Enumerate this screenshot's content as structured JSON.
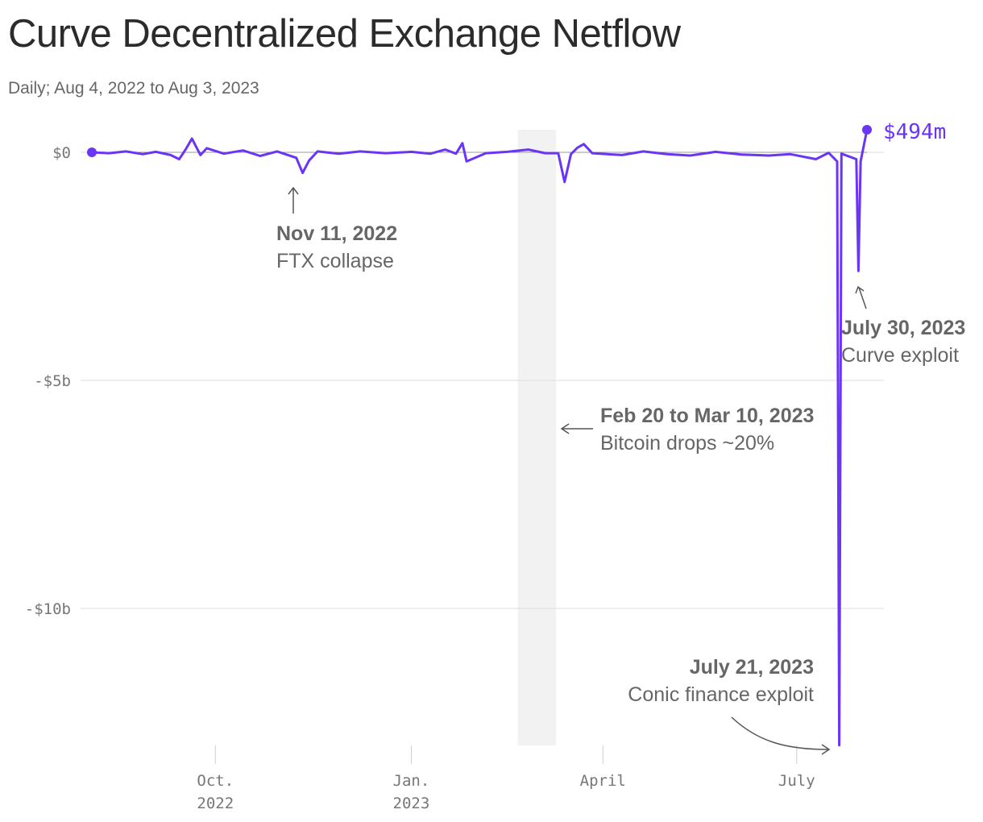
{
  "title": "Curve Decentralized Exchange Netflow",
  "subtitle": "Daily; Aug 4, 2022 to Aug 3, 2023",
  "chart_data": {
    "type": "line",
    "x_range": [
      "2022-08-04",
      "2023-08-03"
    ],
    "ylim": [
      -13000,
      500
    ],
    "y_unit": "millions USD",
    "y_ticks": [
      {
        "value": 0,
        "label": "$0"
      },
      {
        "value": -5000,
        "label": "-$5b"
      },
      {
        "value": -10000,
        "label": "-$10b"
      }
    ],
    "x_ticks": [
      {
        "date": "2022-10-01",
        "label_line1": "Oct.",
        "label_line2": "2022"
      },
      {
        "date": "2023-01-01",
        "label_line1": "Jan.",
        "label_line2": "2023"
      },
      {
        "date": "2023-04-01",
        "label_line1": "April",
        "label_line2": ""
      },
      {
        "date": "2023-07-01",
        "label_line1": "July",
        "label_line2": ""
      }
    ],
    "grid": "horizontal",
    "line_color": "#6b35f5",
    "shaded_region": {
      "start": "2023-02-20",
      "end": "2023-03-10",
      "color": "#f2f2f2"
    },
    "series": [
      {
        "points": [
          [
            "2022-08-04",
            0
          ],
          [
            "2022-08-12",
            -20
          ],
          [
            "2022-08-20",
            20
          ],
          [
            "2022-08-28",
            -40
          ],
          [
            "2022-09-03",
            10
          ],
          [
            "2022-09-10",
            -60
          ],
          [
            "2022-09-14",
            -150
          ],
          [
            "2022-09-17",
            60
          ],
          [
            "2022-09-20",
            300
          ],
          [
            "2022-09-24",
            -60
          ],
          [
            "2022-09-27",
            90
          ],
          [
            "2022-10-05",
            -30
          ],
          [
            "2022-10-14",
            40
          ],
          [
            "2022-10-22",
            -80
          ],
          [
            "2022-10-30",
            20
          ],
          [
            "2022-11-08",
            -120
          ],
          [
            "2022-11-11",
            -450
          ],
          [
            "2022-11-14",
            -180
          ],
          [
            "2022-11-18",
            20
          ],
          [
            "2022-11-28",
            -30
          ],
          [
            "2022-12-08",
            20
          ],
          [
            "2022-12-20",
            -20
          ],
          [
            "2023-01-01",
            10
          ],
          [
            "2023-01-10",
            -30
          ],
          [
            "2023-01-17",
            60
          ],
          [
            "2023-01-22",
            -30
          ],
          [
            "2023-01-25",
            200
          ],
          [
            "2023-01-27",
            -200
          ],
          [
            "2023-02-05",
            -20
          ],
          [
            "2023-02-15",
            10
          ],
          [
            "2023-02-25",
            60
          ],
          [
            "2023-03-05",
            -20
          ],
          [
            "2023-03-11",
            -20
          ],
          [
            "2023-03-14",
            -650
          ],
          [
            "2023-03-17",
            -40
          ],
          [
            "2023-03-20",
            100
          ],
          [
            "2023-03-23",
            180
          ],
          [
            "2023-03-27",
            -20
          ],
          [
            "2023-04-10",
            -60
          ],
          [
            "2023-04-20",
            20
          ],
          [
            "2023-05-01",
            -40
          ],
          [
            "2023-05-12",
            -70
          ],
          [
            "2023-05-24",
            10
          ],
          [
            "2023-06-05",
            -50
          ],
          [
            "2023-06-18",
            -70
          ],
          [
            "2023-06-28",
            -40
          ],
          [
            "2023-07-10",
            -150
          ],
          [
            "2023-07-16",
            -10
          ],
          [
            "2023-07-20",
            -200
          ],
          [
            "2023-07-21",
            -13000
          ],
          [
            "2023-07-22",
            -30
          ],
          [
            "2023-07-29",
            -150
          ],
          [
            "2023-07-30",
            -2600
          ],
          [
            "2023-07-31",
            -200
          ],
          [
            "2023-08-03",
            494
          ]
        ]
      }
    ],
    "end_label": "$494m",
    "annotations": [
      {
        "date_label": "Nov 11, 2022",
        "text": "FTX collapse"
      },
      {
        "date_label": "July 30, 2023",
        "text": "Curve exploit"
      },
      {
        "date_label": "Feb 20 to Mar 10, 2023",
        "text": "Bitcoin drops ~20%"
      },
      {
        "date_label": "July 21, 2023",
        "text": "Conic finance exploit"
      }
    ]
  }
}
